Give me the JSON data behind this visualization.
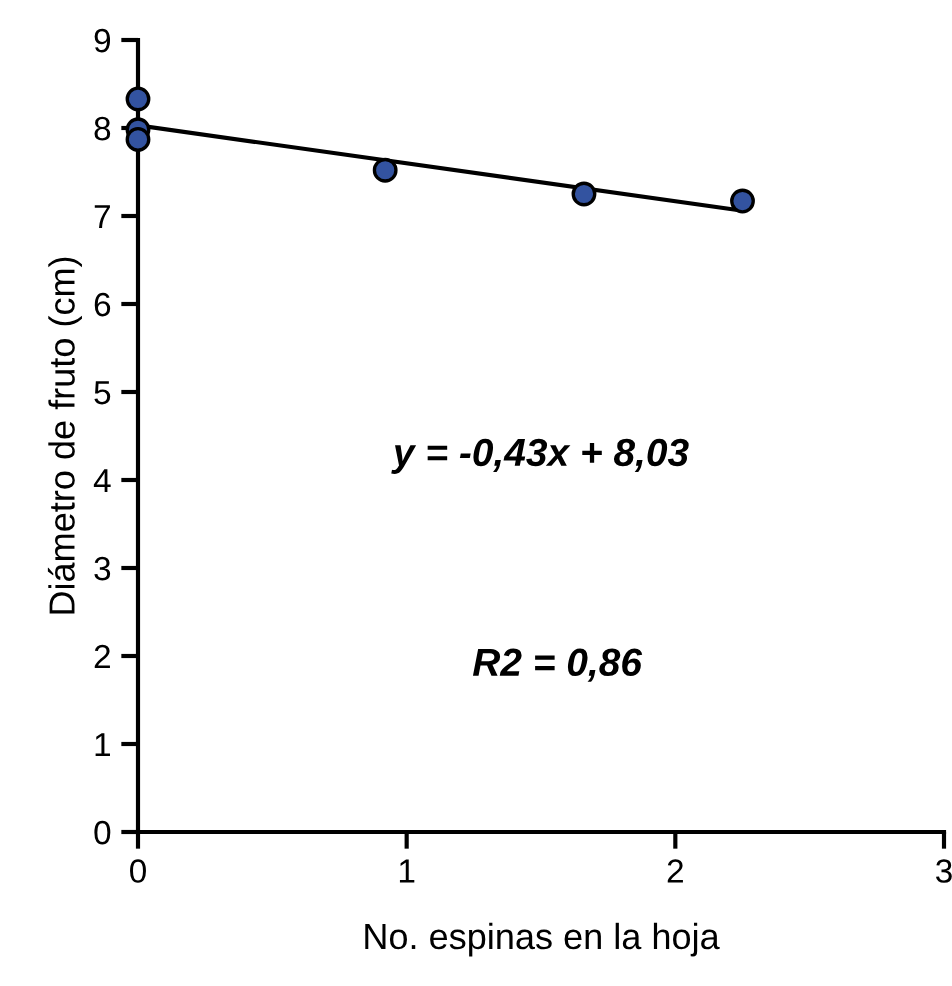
{
  "chart_data": {
    "type": "scatter",
    "xlabel": "No. espinas en la hoja",
    "ylabel": "Diámetro de fruto (cm)",
    "xlim": [
      0,
      3
    ],
    "xticks": [
      0,
      1,
      2,
      3
    ],
    "ylim": [
      0,
      9
    ],
    "yticks": [
      0,
      1,
      2,
      3,
      4,
      5,
      6,
      7,
      8,
      9
    ],
    "grid": false,
    "legend": false,
    "series": [
      {
        "color": "#3353a0",
        "marker": "circle",
        "x": [
          0,
          0,
          0,
          0.92,
          1.66,
          2.25
        ],
        "values": [
          8.33,
          7.98,
          7.87,
          7.52,
          7.25,
          7.17
        ]
      },
      {
        "type": "line",
        "color": "#000000",
        "marker": "none",
        "line_style": "solid",
        "x": [
          0,
          2.25
        ],
        "values": [
          8.03,
          7.06
        ]
      }
    ],
    "annotations": [
      "y = -0,43x + 8,03",
      "R2 = 0,86"
    ]
  }
}
